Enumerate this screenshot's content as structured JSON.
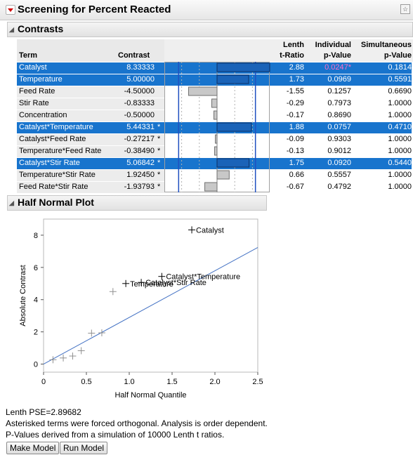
{
  "report": {
    "title": "Screening for Percent Reacted",
    "contrasts_section": "Contrasts",
    "half_normal_section": "Half Normal Plot"
  },
  "columns": {
    "term": "Term",
    "contrast": "Contrast",
    "lenth_t_ratio_1": "Lenth",
    "lenth_t_ratio_2": "t-Ratio",
    "individual_1": "Individual",
    "individual_2": "p-Value",
    "simultaneous_1": "Simultaneous",
    "simultaneous_2": "p-Value"
  },
  "rows": [
    {
      "term": "Catalyst",
      "contrast": "8.33333",
      "star": "",
      "t": "2.88",
      "ind": "0.0247*",
      "sim": "0.1814",
      "value": 8.33333,
      "selected": true,
      "highlight": true
    },
    {
      "term": "Temperature",
      "contrast": "5.00000",
      "star": "",
      "t": "1.73",
      "ind": "0.0969",
      "sim": "0.5591",
      "value": 5.0,
      "selected": true,
      "highlight": false
    },
    {
      "term": "Feed Rate",
      "contrast": "-4.50000",
      "star": "",
      "t": "-1.55",
      "ind": "0.1257",
      "sim": "0.6690",
      "value": -4.5,
      "selected": false,
      "highlight": false
    },
    {
      "term": "Stir Rate",
      "contrast": "-0.83333",
      "star": "",
      "t": "-0.29",
      "ind": "0.7973",
      "sim": "1.0000",
      "value": -0.83333,
      "selected": false,
      "highlight": false
    },
    {
      "term": "Concentration",
      "contrast": "-0.50000",
      "star": "",
      "t": "-0.17",
      "ind": "0.8690",
      "sim": "1.0000",
      "value": -0.5,
      "selected": false,
      "highlight": false
    },
    {
      "term": "Catalyst*Temperature",
      "contrast": "5.44331",
      "star": "*",
      "t": "1.88",
      "ind": "0.0757",
      "sim": "0.4710",
      "value": 5.44331,
      "selected": true,
      "highlight": false
    },
    {
      "term": "Catalyst*Feed Rate",
      "contrast": "-0.27217",
      "star": "*",
      "t": "-0.09",
      "ind": "0.9303",
      "sim": "1.0000",
      "value": -0.27217,
      "selected": false,
      "highlight": false
    },
    {
      "term": "Temperature*Feed Rate",
      "contrast": "-0.38490",
      "star": "*",
      "t": "-0.13",
      "ind": "0.9012",
      "sim": "1.0000",
      "value": -0.3849,
      "selected": false,
      "highlight": false
    },
    {
      "term": "Catalyst*Stir Rate",
      "contrast": "5.06842",
      "star": "*",
      "t": "1.75",
      "ind": "0.0920",
      "sim": "0.5440",
      "value": 5.06842,
      "selected": true,
      "highlight": false
    },
    {
      "term": "Temperature*Stir Rate",
      "contrast": "1.92450",
      "star": "*",
      "t": "0.66",
      "ind": "0.5557",
      "sim": "1.0000",
      "value": 1.9245,
      "selected": false,
      "highlight": false
    },
    {
      "term": "Feed Rate*Stir Rate",
      "contrast": "-1.93793",
      "star": "*",
      "t": "-0.67",
      "ind": "0.4792",
      "sim": "1.0000",
      "value": -1.93793,
      "selected": false,
      "highlight": false
    }
  ],
  "chart_data": {
    "type": "scatter",
    "title": "",
    "xlabel": "Half Normal Quantile",
    "ylabel": "Absolute Contrast",
    "xlim": [
      0,
      2.5
    ],
    "ylim": [
      -0.5,
      9
    ],
    "x_ticks": [
      "0",
      "0.5",
      "1.0",
      "1.5",
      "2.0",
      "2.5"
    ],
    "y_ticks": [
      "0",
      "2",
      "4",
      "6",
      "8"
    ],
    "points": [
      {
        "x": 0.11,
        "y": 0.27,
        "label": ""
      },
      {
        "x": 0.23,
        "y": 0.38,
        "label": ""
      },
      {
        "x": 0.34,
        "y": 0.5,
        "label": ""
      },
      {
        "x": 0.44,
        "y": 0.83,
        "label": ""
      },
      {
        "x": 0.56,
        "y": 1.92,
        "label": ""
      },
      {
        "x": 0.68,
        "y": 1.94,
        "label": ""
      },
      {
        "x": 0.81,
        "y": 4.5,
        "label": ""
      },
      {
        "x": 0.96,
        "y": 5.0,
        "label": "Temperature"
      },
      {
        "x": 1.14,
        "y": 5.07,
        "label": "Catalyst*Stir Rate"
      },
      {
        "x": 1.38,
        "y": 5.44,
        "label": "Catalyst*Temperature"
      },
      {
        "x": 1.73,
        "y": 8.33,
        "label": "Catalyst"
      }
    ],
    "fit_line": {
      "x": [
        0,
        2.5
      ],
      "y": [
        0,
        7.24
      ]
    },
    "line_color": "#4472c4"
  },
  "footer": {
    "lenth_pse": "Lenth PSE=2.89682",
    "note1": "Asterisked terms were forced orthogonal. Analysis is order dependent.",
    "note2": "P-Values derived from a simulation of 10000 Lenth t ratios.",
    "make_model": "Make Model",
    "run_model": "Run Model"
  }
}
